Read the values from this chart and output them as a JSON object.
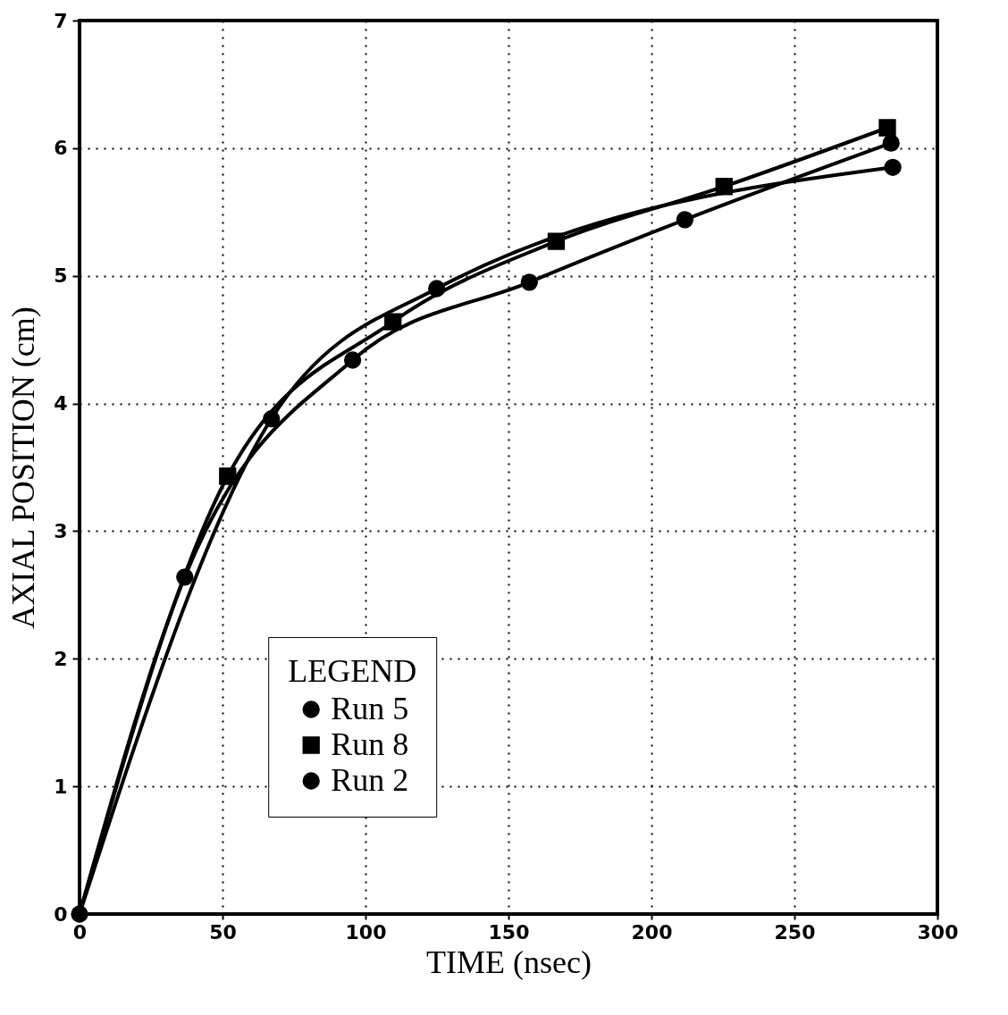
{
  "chart_data": {
    "type": "line",
    "xlabel": "TIME (nsec)",
    "ylabel": "AXIAL POSITION (cm)",
    "legend_title": "LEGEND",
    "xlim": [
      0,
      300
    ],
    "ylim": [
      0,
      7
    ],
    "xticks": [
      0,
      50,
      100,
      150,
      200,
      250,
      300
    ],
    "yticks": [
      0,
      1,
      2,
      3,
      4,
      5,
      6,
      7
    ],
    "grid": true,
    "legend": "bottom left",
    "line_style": "solid",
    "series": [
      {
        "name": "Run 5",
        "color": "#000000",
        "marker": "circle",
        "x": [
          0,
          36.8,
          95.5,
          157.3,
          211.7,
          283.8
        ],
        "values": [
          0,
          2.64,
          4.34,
          4.95,
          5.44,
          6.04
        ]
      },
      {
        "name": "Run 8",
        "color": "#000000",
        "marker": "square",
        "x": [
          0,
          51.8,
          109.6,
          166.7,
          225.4,
          282.5
        ],
        "values": [
          0,
          3.43,
          4.64,
          5.27,
          5.7,
          6.16
        ]
      },
      {
        "name": "Run 2",
        "color": "#000000",
        "marker": "circle",
        "x": [
          0,
          67.1,
          124.9,
          284.4
        ],
        "values": [
          0,
          3.88,
          4.9,
          5.85
        ]
      }
    ]
  }
}
